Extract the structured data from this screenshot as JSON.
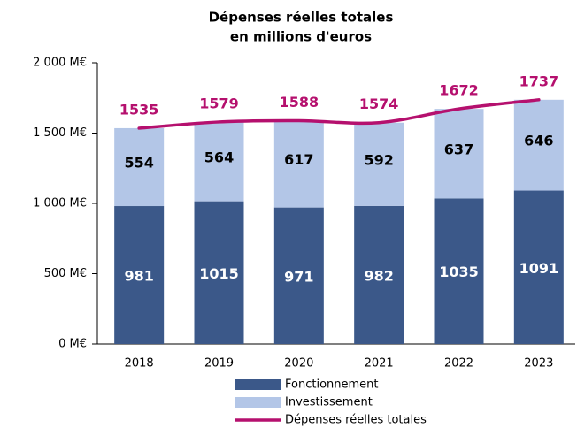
{
  "chart_data": {
    "type": "bar",
    "stacked": true,
    "title": "Dépenses réelles totales",
    "subtitle": "en millions d'euros",
    "categories": [
      "2018",
      "2019",
      "2020",
      "2021",
      "2022",
      "2023"
    ],
    "series": [
      {
        "name": "Fonctionnement",
        "color": "#3b5889",
        "values": [
          981,
          1015,
          971,
          982,
          1035,
          1091
        ]
      },
      {
        "name": "Investissement",
        "color": "#b3c6e7",
        "values": [
          554,
          564,
          617,
          592,
          637,
          646
        ]
      },
      {
        "name": "Dépenses réelles totales",
        "type": "line",
        "color": "#b5106e",
        "values": [
          1535,
          1579,
          1588,
          1574,
          1672,
          1737
        ]
      }
    ],
    "ylim": [
      0,
      2000
    ],
    "yticks": [
      {
        "value": 0,
        "label": "0 M€"
      },
      {
        "value": 500,
        "label": "500 M€"
      },
      {
        "value": 1000,
        "label": "1 000 M€"
      },
      {
        "value": 1500,
        "label": "1 500 M€"
      },
      {
        "value": 2000,
        "label": "2 000 M€"
      }
    ],
    "legend": "bottom"
  }
}
